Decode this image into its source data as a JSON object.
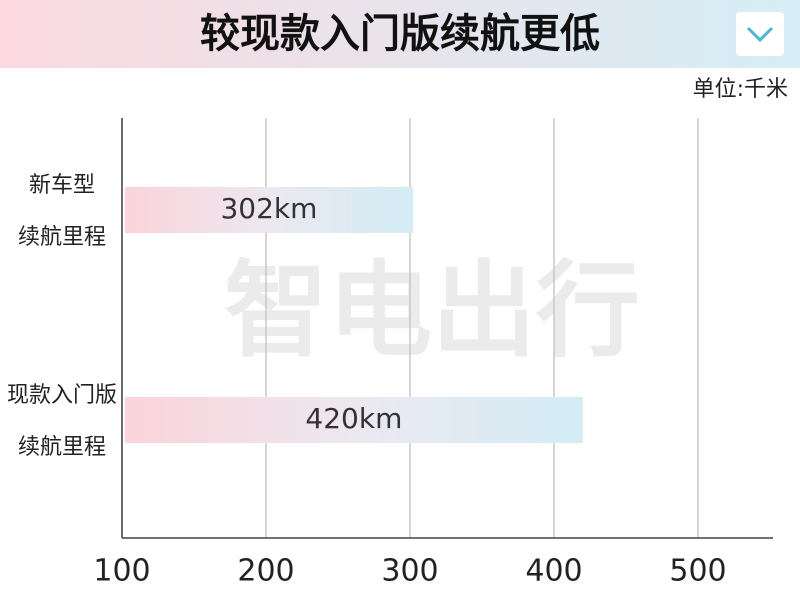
{
  "chart_data": {
    "type": "barh",
    "title": "较现款入门版续航更低",
    "unit": "单位:千米",
    "watermark": "智电出行",
    "categories": [
      [
        "新车型",
        "续航里程"
      ],
      [
        "现款入门版",
        "续航里程"
      ]
    ],
    "values": [
      302,
      420
    ],
    "value_labels": [
      "302km",
      "420km"
    ],
    "xlim": [
      100,
      550
    ],
    "xticks": [
      100,
      200,
      300,
      400,
      500
    ],
    "grid": true
  }
}
